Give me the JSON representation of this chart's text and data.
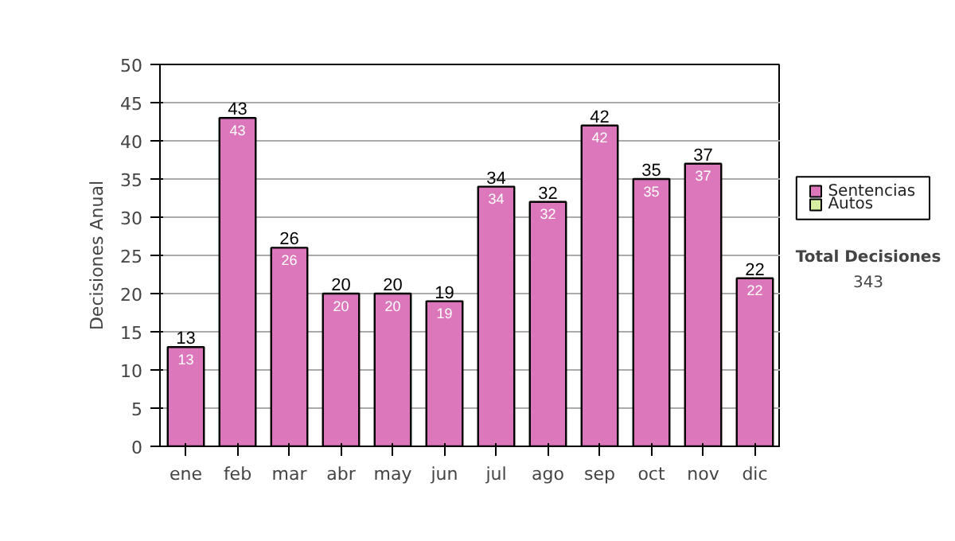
{
  "chart_data": {
    "type": "bar",
    "stacked": true,
    "ylabel": "Decisiones Anual",
    "categories": [
      "ene",
      "feb",
      "mar",
      "abr",
      "may",
      "jun",
      "jul",
      "ago",
      "sep",
      "oct",
      "nov",
      "dic"
    ],
    "series": [
      {
        "name": "Sentencias",
        "color": "#dd77bb",
        "values": [
          13,
          43,
          26,
          20,
          20,
          19,
          34,
          32,
          42,
          35,
          37,
          22
        ]
      },
      {
        "name": "Autos",
        "color": "#d6eea0",
        "values": [
          null,
          null,
          null,
          null,
          null,
          null,
          null,
          null,
          null,
          null,
          null,
          null
        ]
      }
    ],
    "data_labels": true,
    "totals": [
      "13",
      "43",
      "26",
      "20",
      "20",
      "19",
      "34",
      "32",
      "42",
      "35",
      "37",
      "22"
    ],
    "ylim": [
      0,
      50
    ],
    "yticks": [
      0,
      5,
      10,
      15,
      20,
      25,
      30,
      35,
      40,
      45,
      50
    ],
    "grid": "y",
    "legend": "right",
    "annotations": [
      "Total Decisiones",
      "343"
    ]
  }
}
